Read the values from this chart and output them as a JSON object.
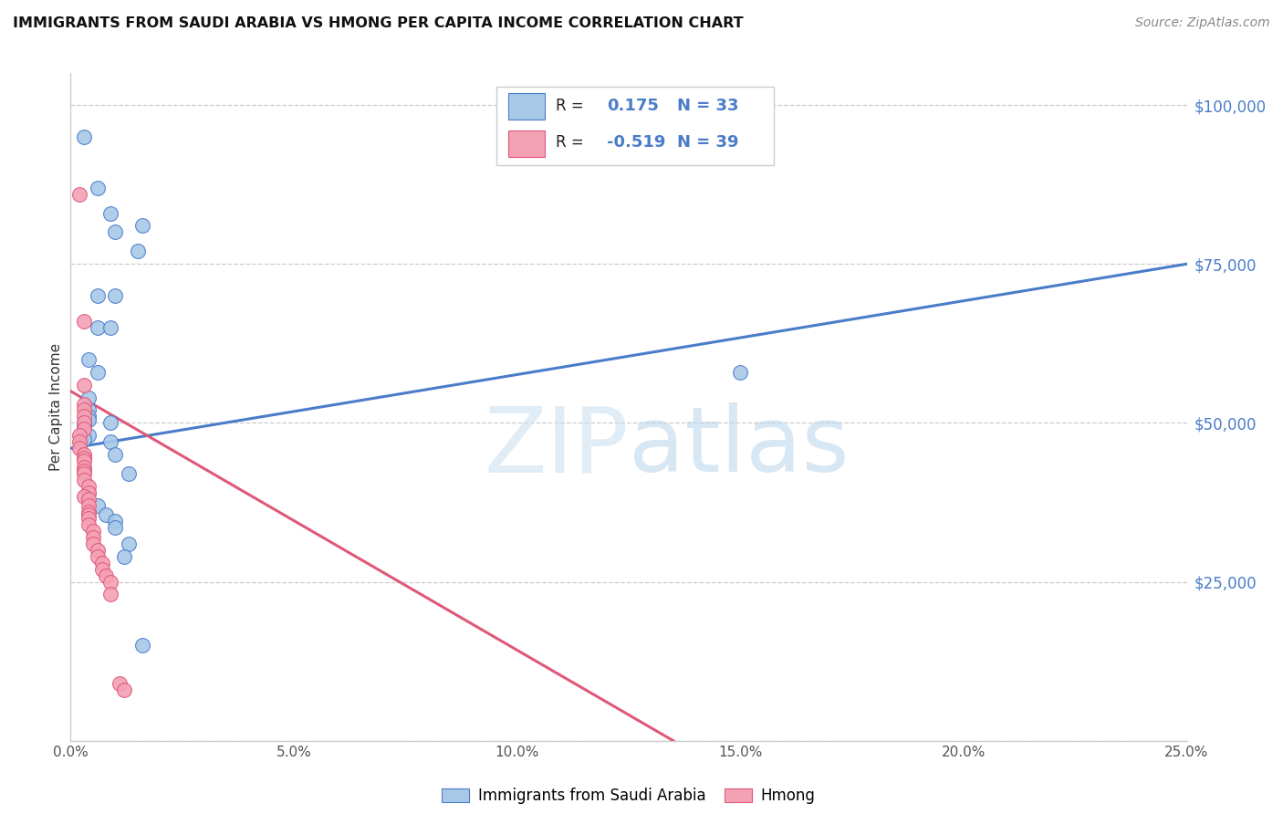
{
  "title": "IMMIGRANTS FROM SAUDI ARABIA VS HMONG PER CAPITA INCOME CORRELATION CHART",
  "source": "Source: ZipAtlas.com",
  "ylabel": "Per Capita Income",
  "watermark": "ZIPatlas",
  "y_ticks": [
    0,
    25000,
    50000,
    75000,
    100000
  ],
  "y_tick_labels": [
    "",
    "$25,000",
    "$50,000",
    "$75,000",
    "$100,000"
  ],
  "x_min": 0.0,
  "x_max": 0.25,
  "y_min": 0,
  "y_max": 105000,
  "blue_color": "#a8c8e8",
  "pink_color": "#f4a0b5",
  "line_blue": "#4a7cc9",
  "line_pink": "#e05878",
  "blue_line_x": [
    0.0,
    0.25
  ],
  "blue_line_y": [
    46000,
    75000
  ],
  "pink_line_x": [
    0.0,
    0.135
  ],
  "pink_line_y": [
    55000,
    0
  ],
  "blue_scatter": [
    [
      0.003,
      95000
    ],
    [
      0.006,
      87000
    ],
    [
      0.009,
      83000
    ],
    [
      0.01,
      80000
    ],
    [
      0.016,
      81000
    ],
    [
      0.015,
      77000
    ],
    [
      0.006,
      70000
    ],
    [
      0.01,
      70000
    ],
    [
      0.006,
      65000
    ],
    [
      0.009,
      65000
    ],
    [
      0.004,
      60000
    ],
    [
      0.006,
      58000
    ],
    [
      0.004,
      54000
    ],
    [
      0.004,
      52000
    ],
    [
      0.004,
      51000
    ],
    [
      0.004,
      50500
    ],
    [
      0.003,
      50000
    ],
    [
      0.003,
      49500
    ],
    [
      0.009,
      50000
    ],
    [
      0.004,
      48000
    ],
    [
      0.003,
      47500
    ],
    [
      0.009,
      47000
    ],
    [
      0.01,
      45000
    ],
    [
      0.013,
      42000
    ],
    [
      0.004,
      39000
    ],
    [
      0.006,
      37000
    ],
    [
      0.008,
      35500
    ],
    [
      0.01,
      34500
    ],
    [
      0.01,
      33500
    ],
    [
      0.013,
      31000
    ],
    [
      0.012,
      29000
    ],
    [
      0.016,
      15000
    ],
    [
      0.15,
      58000
    ]
  ],
  "pink_scatter": [
    [
      0.002,
      86000
    ],
    [
      0.003,
      66000
    ],
    [
      0.003,
      56000
    ],
    [
      0.003,
      53000
    ],
    [
      0.003,
      52000
    ],
    [
      0.003,
      51000
    ],
    [
      0.003,
      50000
    ],
    [
      0.003,
      49000
    ],
    [
      0.002,
      48000
    ],
    [
      0.002,
      47000
    ],
    [
      0.002,
      46000
    ],
    [
      0.003,
      45000
    ],
    [
      0.003,
      44500
    ],
    [
      0.003,
      44000
    ],
    [
      0.003,
      43000
    ],
    [
      0.003,
      42500
    ],
    [
      0.003,
      42000
    ],
    [
      0.003,
      41000
    ],
    [
      0.004,
      40000
    ],
    [
      0.004,
      39000
    ],
    [
      0.003,
      38500
    ],
    [
      0.004,
      38000
    ],
    [
      0.004,
      37000
    ],
    [
      0.004,
      36000
    ],
    [
      0.004,
      35500
    ],
    [
      0.004,
      35000
    ],
    [
      0.004,
      34000
    ],
    [
      0.005,
      33000
    ],
    [
      0.005,
      32000
    ],
    [
      0.005,
      31000
    ],
    [
      0.006,
      30000
    ],
    [
      0.006,
      29000
    ],
    [
      0.007,
      28000
    ],
    [
      0.007,
      27000
    ],
    [
      0.008,
      26000
    ],
    [
      0.009,
      25000
    ],
    [
      0.009,
      23000
    ],
    [
      0.011,
      9000
    ],
    [
      0.012,
      8000
    ]
  ]
}
